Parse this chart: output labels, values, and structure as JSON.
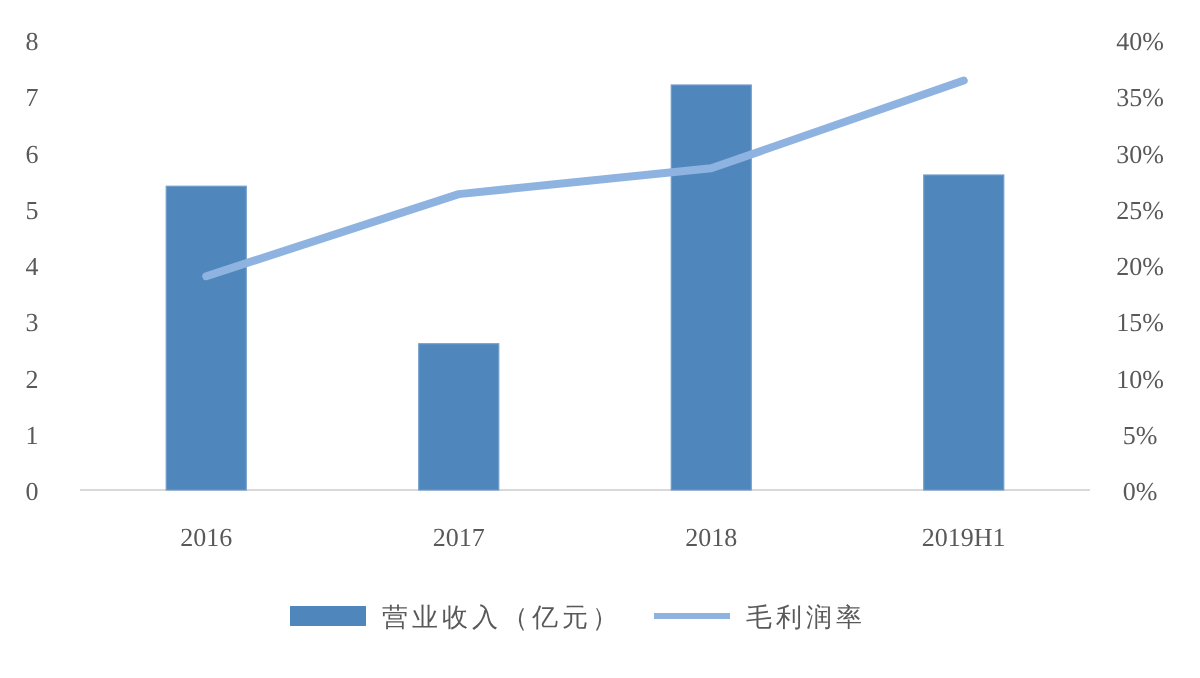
{
  "chart_data": {
    "type": "bar",
    "categories": [
      "2016",
      "2017",
      "2018",
      "2019H1"
    ],
    "series": [
      {
        "name": "营业收入（亿元）",
        "color": "#4f86bb",
        "values": [
          5.4,
          2.6,
          7.2,
          5.6
        ]
      },
      {
        "name": "毛利润率",
        "type": "line",
        "axis": "y2",
        "color": "#8fb3e0",
        "values": [
          19,
          26.3,
          28.6,
          36.4
        ]
      }
    ],
    "ylim": [
      0,
      8
    ],
    "yticks": [
      0,
      1,
      2,
      3,
      4,
      5,
      6,
      7,
      8
    ],
    "y2lim": [
      0,
      40
    ],
    "y2ticks": [
      {
        "value": 0,
        "label": "0%"
      },
      {
        "value": 5,
        "label": "5%"
      },
      {
        "value": 10,
        "label": "10%"
      },
      {
        "value": 15,
        "label": "15%"
      },
      {
        "value": 20,
        "label": "20%"
      },
      {
        "value": 25,
        "label": "25%"
      },
      {
        "value": 30,
        "label": "30%"
      },
      {
        "value": 35,
        "label": "35%"
      },
      {
        "value": 40,
        "label": "40%"
      }
    ],
    "grid": false,
    "legend": "bottom",
    "marker": "none"
  }
}
